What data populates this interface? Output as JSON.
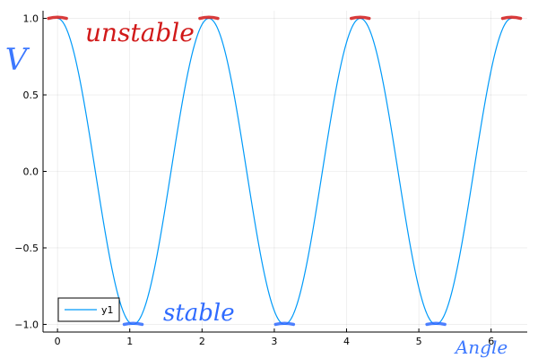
{
  "chart_data": {
    "type": "line",
    "title": "",
    "xlabel": "Angle",
    "ylabel": "V",
    "xlim": [
      -0.2,
      6.5
    ],
    "ylim": [
      -1.05,
      1.05
    ],
    "x_ticks": [
      0,
      1,
      2,
      3,
      4,
      5,
      6
    ],
    "x_tick_labels": [
      "0",
      "1",
      "2",
      "3",
      "4",
      "5",
      "6"
    ],
    "y_ticks": [
      -1.0,
      -0.5,
      0.0,
      0.5,
      1.0
    ],
    "y_tick_labels": [
      "−1.0",
      "−0.5",
      "0.0",
      "0.5",
      "1.0"
    ],
    "grid": true,
    "legend_position": "bottom-left",
    "series": [
      {
        "name": "y1",
        "color": "#009af9",
        "function": "cos(3x)",
        "x_range": [
          0,
          6.2832
        ]
      }
    ],
    "annotations": {
      "unstable_label": "unstable",
      "stable_label": "stable",
      "unstable_color": "#d11a1a",
      "stable_color": "#2f6bff",
      "axis_note_color": "#3c78ff",
      "unstable_x": [
        0.0,
        2.0944,
        4.1888,
        6.2832
      ],
      "stable_x": [
        1.0472,
        3.1416,
        5.236
      ]
    }
  }
}
